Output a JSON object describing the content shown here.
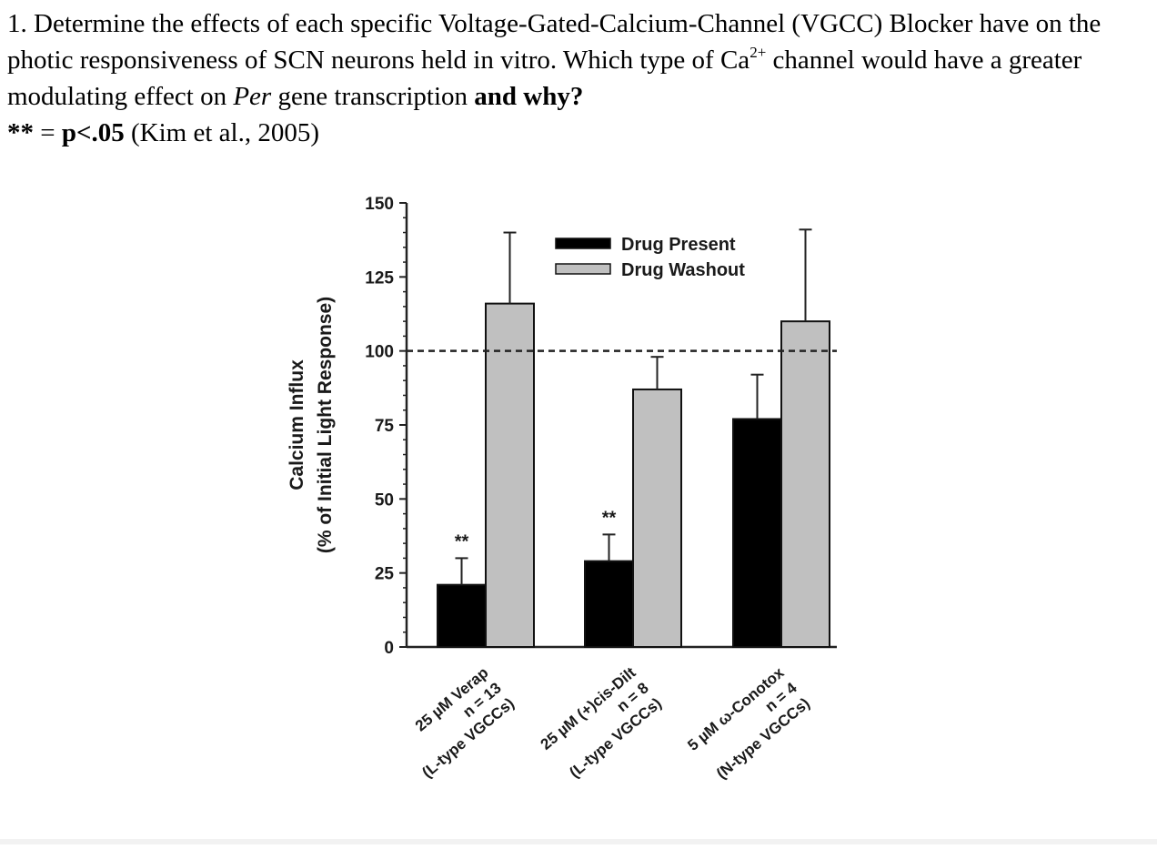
{
  "question": {
    "number": "1.",
    "text_1": "Determine the effects of each specific Voltage-Gated-Calcium-Channel (VGCC) Blocker have on the photic responsiveness of SCN neurons held in vitro.  Which type of Ca",
    "superscript": "2+",
    "text_2": " channel would have a greater modulating effect on ",
    "italic_word": "Per",
    "text_3": " gene transcription ",
    "bold_end": "and why?",
    "significance_stars": "**",
    "significance_eq": " = ",
    "significance_bold": "p<.05",
    "citation": " (Kim et al., 2005)"
  },
  "chart_data": {
    "type": "bar",
    "ylabel_line1": "Calcium Influx",
    "ylabel_line2": "(% of Initial Light Response)",
    "ylim": [
      0,
      150
    ],
    "yticks": [
      0,
      25,
      50,
      75,
      100,
      125,
      150
    ],
    "reference_line": 100,
    "legend_position": "top-center",
    "categories": [
      {
        "line1": "25 µM Verap",
        "line2": "n = 13",
        "line3": "(L-type VGCCs)"
      },
      {
        "line1": "25 µM (+)cis-Dilt",
        "line2": "n = 8",
        "line3": "(L-type VGCCs)"
      },
      {
        "line1": "5 µM ω-Conotox",
        "line2": "n = 4",
        "line3": "(N-type VGCCs)"
      }
    ],
    "series": [
      {
        "name": "Drug Present",
        "color": "#000000",
        "values": [
          21,
          29,
          77
        ],
        "errors": [
          9,
          9,
          15
        ],
        "annotations": [
          "**",
          "**",
          ""
        ]
      },
      {
        "name": "Drug Washout",
        "color": "#c0c0c0",
        "values": [
          116,
          87,
          110
        ],
        "errors": [
          24,
          11,
          31
        ],
        "annotations": [
          "",
          "",
          ""
        ]
      }
    ]
  }
}
